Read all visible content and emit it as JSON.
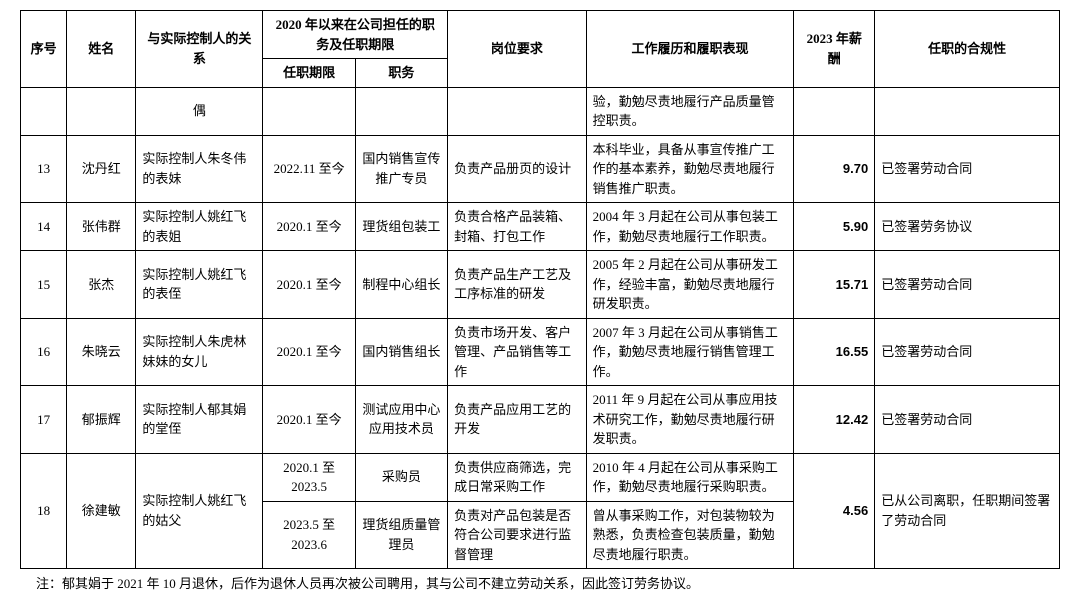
{
  "headers": {
    "seq": "序号",
    "name": "姓名",
    "relation": "与实际控制人的关系",
    "position_group": "2020 年以来在公司担任的职务及任职期限",
    "term": "任职期限",
    "position": "职务",
    "requirement": "岗位要求",
    "history": "工作履历和履职表现",
    "salary": "2023 年薪酬",
    "compliance": "任职的合规性"
  },
  "partial_row": {
    "relation": "偶",
    "history": "验，勤勉尽责地履行产品质量管控职责。"
  },
  "rows": [
    {
      "seq": "13",
      "name": "沈丹红",
      "relation": "实际控制人朱冬伟的表妹",
      "term": "2022.11 至今",
      "position": "国内销售宣传推广专员",
      "requirement": "负责产品册页的设计",
      "history": "本科毕业，具备从事宣传推广工作的基本素养，勤勉尽责地履行销售推广职责。",
      "salary": "9.70",
      "compliance": "已签署劳动合同"
    },
    {
      "seq": "14",
      "name": "张伟群",
      "relation": "实际控制人姚红飞的表姐",
      "term": "2020.1 至今",
      "position": "理货组包装工",
      "requirement": "负责合格产品装箱、封箱、打包工作",
      "history": "2004 年 3 月起在公司从事包装工作，勤勉尽责地履行工作职责。",
      "salary": "5.90",
      "compliance": "已签署劳务协议"
    },
    {
      "seq": "15",
      "name": "张杰",
      "relation": "实际控制人姚红飞的表侄",
      "term": "2020.1 至今",
      "position": "制程中心组长",
      "requirement": "负责产品生产工艺及工序标准的研发",
      "history": "2005 年 2 月起在公司从事研发工作，经验丰富，勤勉尽责地履行研发职责。",
      "salary": "15.71",
      "compliance": "已签署劳动合同"
    },
    {
      "seq": "16",
      "name": "朱晓云",
      "relation": "实际控制人朱虎林妹妹的女儿",
      "term": "2020.1 至今",
      "position": "国内销售组长",
      "requirement": "负责市场开发、客户管理、产品销售等工作",
      "history": "2007 年 3 月起在公司从事销售工作，勤勉尽责地履行销售管理工作。",
      "salary": "16.55",
      "compliance": "已签署劳动合同"
    },
    {
      "seq": "17",
      "name": "郁振辉",
      "relation": "实际控制人郁其娟的堂侄",
      "term": "2020.1 至今",
      "position": "测试应用中心应用技术员",
      "requirement": "负责产品应用工艺的开发",
      "history": "2011 年 9 月起在公司从事应用技术研究工作，勤勉尽责地履行研发职责。",
      "salary": "12.42",
      "compliance": "已签署劳动合同"
    },
    {
      "seq": "18",
      "name": "徐建敏",
      "relation": "实际控制人姚红飞的姑父",
      "subrows": [
        {
          "term": "2020.1 至2023.5",
          "position": "采购员",
          "requirement": "负责供应商筛选，完成日常采购工作",
          "history": "2010 年 4 月起在公司从事采购工作，勤勉尽责地履行采购职责。"
        },
        {
          "term": "2023.5 至2023.6",
          "position": "理货组质量管理员",
          "requirement": "负责对产品包装是否符合公司要求进行监督管理",
          "history": "曾从事采购工作，对包装物较为熟悉，负责检查包装质量，勤勉尽责地履行职责。"
        }
      ],
      "salary": "4.56",
      "compliance": "已从公司离职，任职期间签署了劳动合同"
    }
  ],
  "footnote": "注：郁其娟于 2021 年 10 月退休，后作为退休人员再次被公司聘用，其与公司不建立劳动关系，因此签订劳务协议。"
}
